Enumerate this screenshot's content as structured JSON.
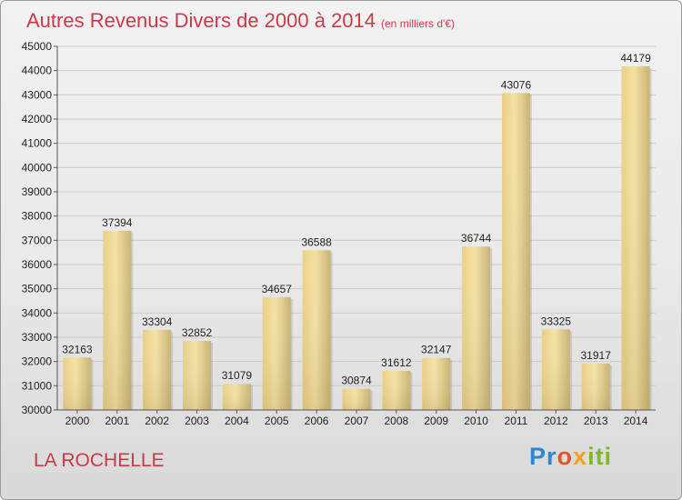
{
  "header": {
    "title": "Autres Revenus Divers de 2000 à 2014",
    "unit": "(en milliers d'€)"
  },
  "footer": {
    "place": "LA ROCHELLE",
    "logo": [
      "Pr",
      "o",
      "x",
      "iti"
    ]
  },
  "colors": {
    "title": "#c83a4a",
    "bar_light": "#f2dc98",
    "bar_dark": "#c4ae6c",
    "grid": "#cccccc"
  },
  "chart_data": {
    "type": "bar",
    "title": "Autres Revenus Divers de 2000 à 2014",
    "subtitle": "(en milliers d'€)",
    "xlabel": "",
    "ylabel": "",
    "categories": [
      "2000",
      "2001",
      "2002",
      "2003",
      "2004",
      "2005",
      "2006",
      "2007",
      "2008",
      "2009",
      "2010",
      "2011",
      "2012",
      "2013",
      "2014"
    ],
    "values": [
      32163,
      37394,
      33304,
      32852,
      31079,
      34657,
      36588,
      30874,
      31612,
      32147,
      36744,
      43076,
      33325,
      31917,
      44179
    ],
    "ylim": [
      30000,
      45000
    ],
    "yticks": [
      30000,
      31000,
      32000,
      33000,
      34000,
      35000,
      36000,
      37000,
      38000,
      39000,
      40000,
      41000,
      42000,
      43000,
      44000,
      45000
    ],
    "grid": true,
    "data_labels": true
  }
}
